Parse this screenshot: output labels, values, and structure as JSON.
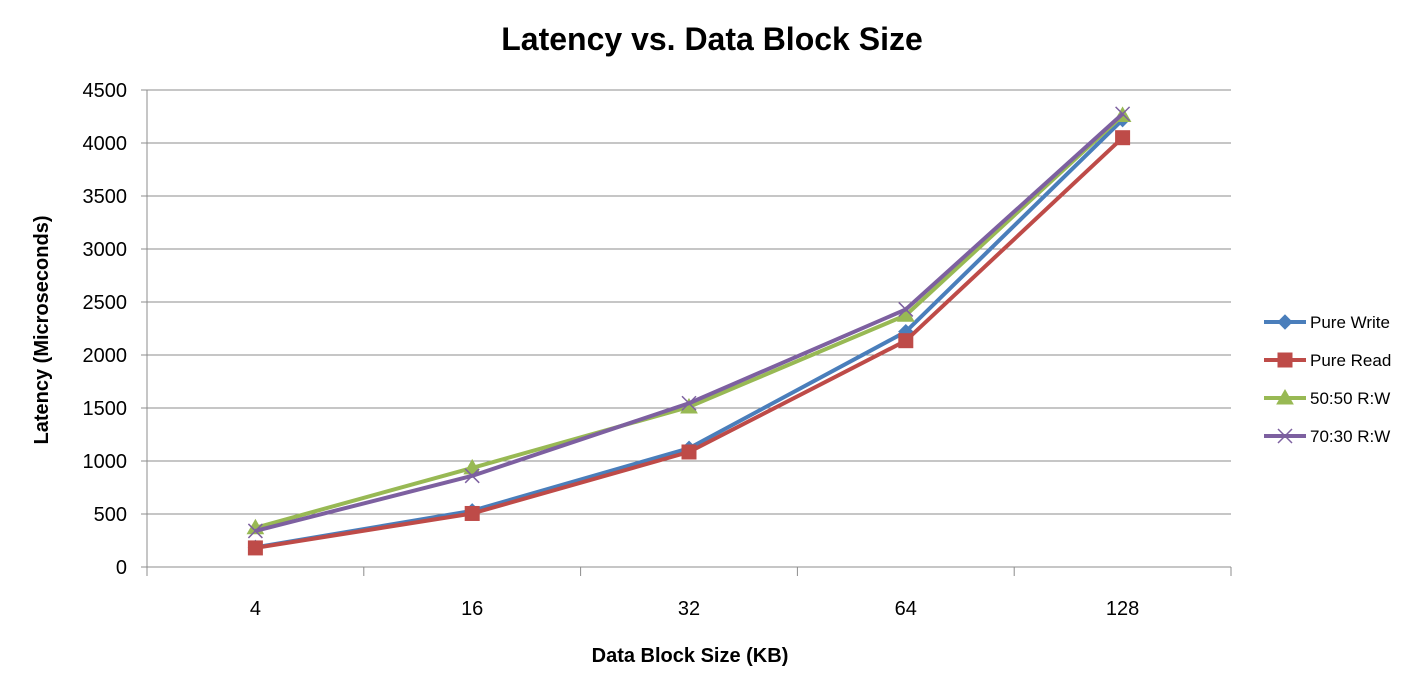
{
  "chart_data": {
    "type": "line",
    "title": "Latency vs. Data Block Size",
    "xlabel": "Data Block Size (KB)",
    "ylabel": "Latency (Microseconds)",
    "categories": [
      "4",
      "16",
      "32",
      "64",
      "128"
    ],
    "ylim": [
      0,
      4500
    ],
    "yticks": [
      0,
      500,
      1000,
      1500,
      2000,
      2500,
      3000,
      3500,
      4000,
      4500
    ],
    "grid": "horizontal",
    "legend_position": "right",
    "series": [
      {
        "name": "Pure Write",
        "color": "#4a7ebb",
        "marker": "diamond",
        "values": [
          185,
          530,
          1120,
          2220,
          4220
        ]
      },
      {
        "name": "Pure Read",
        "color": "#be4b48",
        "marker": "square",
        "values": [
          180,
          505,
          1085,
          2135,
          4050
        ]
      },
      {
        "name": "50:50 R:W",
        "color": "#98b954",
        "marker": "triangle",
        "values": [
          370,
          935,
          1510,
          2375,
          4260
        ]
      },
      {
        "name": "70:30 R:W",
        "color": "#7d60a0",
        "marker": "x",
        "values": [
          340,
          860,
          1545,
          2430,
          4275
        ]
      }
    ]
  }
}
